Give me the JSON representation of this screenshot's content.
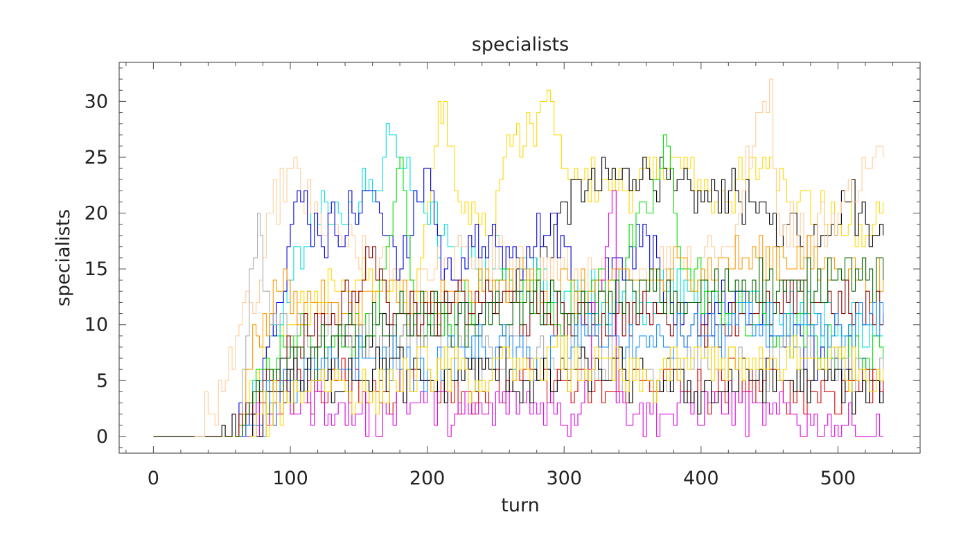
{
  "chart_data": {
    "type": "line",
    "title": "specialists",
    "xlabel": "turn",
    "ylabel": "specialists",
    "xlim": [
      -25,
      560
    ],
    "ylim": [
      -1.5,
      33.5
    ],
    "xticks": [
      0,
      100,
      200,
      300,
      400,
      500
    ],
    "yticks": [
      0,
      5,
      10,
      15,
      20,
      25,
      30
    ],
    "xtick_labels": [
      "0",
      "100",
      "200",
      "300",
      "400",
      "500"
    ],
    "ytick_labels": [
      "0",
      "5",
      "10",
      "15",
      "20",
      "25",
      "30"
    ],
    "x_minor_step": 20,
    "y_minor_step": 1,
    "grid": false,
    "legend": "none",
    "colors_used": [
      "#000000",
      "#0000dd",
      "#00dd00",
      "#dd0000",
      "#00dddd",
      "#dd00dd",
      "#ffd700",
      "#ffcc99",
      "#ff9900",
      "#8b0000",
      "#aaaaaa",
      "#006400",
      "#1e90ff"
    ],
    "series": [
      {
        "color": "#ffd700",
        "points": [
          [
            0,
            0
          ],
          [
            60,
            0
          ],
          [
            90,
            9
          ],
          [
            110,
            12
          ],
          [
            150,
            14
          ],
          [
            190,
            12
          ],
          [
            205,
            26
          ],
          [
            208,
            30
          ],
          [
            212,
            30
          ],
          [
            220,
            22
          ],
          [
            245,
            18
          ],
          [
            258,
            27
          ],
          [
            270,
            26
          ],
          [
            280,
            29
          ],
          [
            290,
            30
          ],
          [
            298,
            24
          ],
          [
            310,
            23
          ],
          [
            330,
            23
          ],
          [
            350,
            22
          ],
          [
            370,
            24
          ],
          [
            390,
            24
          ],
          [
            410,
            21
          ],
          [
            430,
            23
          ],
          [
            450,
            25
          ],
          [
            470,
            21
          ],
          [
            500,
            19
          ],
          [
            520,
            18
          ],
          [
            533,
            21
          ]
        ]
      },
      {
        "color": "#000000",
        "points": [
          [
            0,
            0
          ],
          [
            48,
            0
          ],
          [
            50,
            1
          ],
          [
            70,
            2
          ],
          [
            90,
            5
          ],
          [
            130,
            7
          ],
          [
            180,
            9
          ],
          [
            240,
            12
          ],
          [
            280,
            15
          ],
          [
            300,
            21
          ],
          [
            315,
            22
          ],
          [
            340,
            23
          ],
          [
            360,
            24
          ],
          [
            380,
            22
          ],
          [
            400,
            21
          ],
          [
            420,
            22
          ],
          [
            440,
            20
          ],
          [
            460,
            19
          ],
          [
            480,
            18
          ],
          [
            505,
            21
          ],
          [
            515,
            20
          ],
          [
            533,
            18
          ]
        ]
      },
      {
        "color": "#00dddd",
        "points": [
          [
            60,
            0
          ],
          [
            80,
            7
          ],
          [
            95,
            13
          ],
          [
            110,
            17
          ],
          [
            125,
            21
          ],
          [
            140,
            19
          ],
          [
            155,
            22
          ],
          [
            165,
            22
          ],
          [
            170,
            28
          ],
          [
            180,
            24
          ],
          [
            200,
            19
          ],
          [
            220,
            17
          ],
          [
            260,
            15
          ],
          [
            300,
            13
          ],
          [
            340,
            12
          ],
          [
            380,
            13
          ],
          [
            420,
            12
          ],
          [
            460,
            11
          ],
          [
            500,
            10
          ],
          [
            533,
            9
          ]
        ]
      },
      {
        "color": "#ffcc99",
        "points": [
          [
            30,
            0
          ],
          [
            40,
            2
          ],
          [
            50,
            4
          ],
          [
            60,
            9
          ],
          [
            75,
            12
          ],
          [
            85,
            20
          ],
          [
            100,
            24
          ],
          [
            115,
            20
          ],
          [
            140,
            17
          ],
          [
            180,
            14
          ],
          [
            230,
            16
          ],
          [
            280,
            15
          ],
          [
            330,
            14
          ],
          [
            380,
            16
          ],
          [
            420,
            17
          ],
          [
            445,
            30
          ],
          [
            450,
            32
          ],
          [
            455,
            20
          ],
          [
            480,
            18
          ],
          [
            500,
            20
          ],
          [
            520,
            24
          ],
          [
            533,
            25
          ]
        ]
      },
      {
        "color": "#0000dd",
        "points": [
          [
            60,
            0
          ],
          [
            75,
            5
          ],
          [
            90,
            12
          ],
          [
            105,
            22
          ],
          [
            120,
            18
          ],
          [
            150,
            20
          ],
          [
            160,
            22
          ],
          [
            180,
            15
          ],
          [
            200,
            24
          ],
          [
            210,
            14
          ],
          [
            240,
            17
          ],
          [
            270,
            15
          ],
          [
            290,
            20
          ],
          [
            310,
            12
          ],
          [
            340,
            16
          ],
          [
            360,
            18
          ],
          [
            380,
            10
          ],
          [
            420,
            12
          ],
          [
            460,
            8
          ],
          [
            500,
            7
          ],
          [
            533,
            5
          ]
        ]
      },
      {
        "color": "#00dd00",
        "points": [
          [
            65,
            0
          ],
          [
            80,
            6
          ],
          [
            100,
            9
          ],
          [
            130,
            8
          ],
          [
            160,
            9
          ],
          [
            180,
            25
          ],
          [
            190,
            10
          ],
          [
            230,
            12
          ],
          [
            260,
            14
          ],
          [
            300,
            11
          ],
          [
            340,
            15
          ],
          [
            360,
            20
          ],
          [
            375,
            26
          ],
          [
            385,
            15
          ],
          [
            420,
            11
          ],
          [
            460,
            9
          ],
          [
            500,
            8
          ],
          [
            533,
            7
          ]
        ]
      },
      {
        "color": "#aaaaaa",
        "points": [
          [
            60,
            0
          ],
          [
            65,
            6
          ],
          [
            70,
            15
          ],
          [
            76,
            20
          ],
          [
            80,
            13
          ],
          [
            90,
            10
          ],
          [
            110,
            9
          ],
          [
            140,
            10
          ],
          [
            170,
            8
          ],
          [
            200,
            9
          ],
          [
            240,
            7
          ],
          [
            280,
            8
          ],
          [
            320,
            7
          ],
          [
            360,
            6
          ],
          [
            400,
            7
          ],
          [
            440,
            6
          ],
          [
            480,
            7
          ],
          [
            533,
            6
          ]
        ]
      },
      {
        "color": "#ff9900",
        "points": [
          [
            60,
            0
          ],
          [
            75,
            9
          ],
          [
            90,
            13
          ],
          [
            110,
            12
          ],
          [
            140,
            11
          ],
          [
            170,
            13
          ],
          [
            200,
            12
          ],
          [
            240,
            13
          ],
          [
            280,
            14
          ],
          [
            320,
            13
          ],
          [
            360,
            14
          ],
          [
            400,
            15
          ],
          [
            430,
            16
          ],
          [
            460,
            16
          ],
          [
            500,
            15
          ],
          [
            533,
            14
          ]
        ]
      },
      {
        "color": "#8b0000",
        "points": [
          [
            60,
            0
          ],
          [
            80,
            5
          ],
          [
            100,
            8
          ],
          [
            130,
            11
          ],
          [
            150,
            13
          ],
          [
            160,
            17
          ],
          [
            170,
            12
          ],
          [
            200,
            11
          ],
          [
            240,
            12
          ],
          [
            280,
            11
          ],
          [
            320,
            10
          ],
          [
            360,
            11
          ],
          [
            400,
            10
          ],
          [
            440,
            11
          ],
          [
            480,
            12
          ],
          [
            533,
            11
          ]
        ]
      },
      {
        "color": "#dd0000",
        "points": [
          [
            65,
            0
          ],
          [
            80,
            3
          ],
          [
            110,
            4
          ],
          [
            140,
            5
          ],
          [
            170,
            4
          ],
          [
            200,
            5
          ],
          [
            240,
            4
          ],
          [
            280,
            5
          ],
          [
            320,
            4
          ],
          [
            360,
            5
          ],
          [
            400,
            4
          ],
          [
            440,
            5
          ],
          [
            480,
            4
          ],
          [
            533,
            5
          ]
        ]
      },
      {
        "color": "#dd00dd",
        "points": [
          [
            65,
            0
          ],
          [
            85,
            2
          ],
          [
            110,
            3
          ],
          [
            150,
            2
          ],
          [
            190,
            3
          ],
          [
            230,
            2
          ],
          [
            270,
            3
          ],
          [
            310,
            2
          ],
          [
            335,
            22
          ],
          [
            338,
            3
          ],
          [
            370,
            2
          ],
          [
            410,
            3
          ],
          [
            450,
            2
          ],
          [
            490,
            1
          ],
          [
            533,
            0
          ]
        ]
      },
      {
        "color": "#006400",
        "points": [
          [
            60,
            0
          ],
          [
            80,
            4
          ],
          [
            110,
            7
          ],
          [
            150,
            9
          ],
          [
            190,
            11
          ],
          [
            230,
            10
          ],
          [
            270,
            12
          ],
          [
            310,
            11
          ],
          [
            350,
            13
          ],
          [
            390,
            12
          ],
          [
            430,
            14
          ],
          [
            470,
            13
          ],
          [
            500,
            15
          ],
          [
            533,
            14
          ]
        ]
      },
      {
        "color": "#1e90ff",
        "points": [
          [
            65,
            0
          ],
          [
            85,
            3
          ],
          [
            120,
            6
          ],
          [
            160,
            7
          ],
          [
            200,
            6
          ],
          [
            240,
            8
          ],
          [
            280,
            7
          ],
          [
            320,
            9
          ],
          [
            360,
            8
          ],
          [
            400,
            9
          ],
          [
            440,
            10
          ],
          [
            480,
            9
          ],
          [
            533,
            10
          ]
        ]
      },
      {
        "color": "#000000",
        "points": [
          [
            70,
            0
          ],
          [
            85,
            4
          ],
          [
            120,
            5
          ],
          [
            160,
            6
          ],
          [
            200,
            5
          ],
          [
            240,
            6
          ],
          [
            280,
            5
          ],
          [
            320,
            6
          ],
          [
            360,
            5
          ],
          [
            400,
            4
          ],
          [
            440,
            5
          ],
          [
            480,
            5
          ],
          [
            533,
            4
          ]
        ]
      },
      {
        "color": "#ffd700",
        "points": [
          [
            70,
            0
          ],
          [
            90,
            3
          ],
          [
            120,
            5
          ],
          [
            160,
            4
          ],
          [
            200,
            6
          ],
          [
            240,
            5
          ],
          [
            280,
            7
          ],
          [
            320,
            6
          ],
          [
            360,
            5
          ],
          [
            400,
            7
          ],
          [
            440,
            6
          ],
          [
            480,
            7
          ],
          [
            533,
            6
          ]
        ]
      }
    ]
  }
}
